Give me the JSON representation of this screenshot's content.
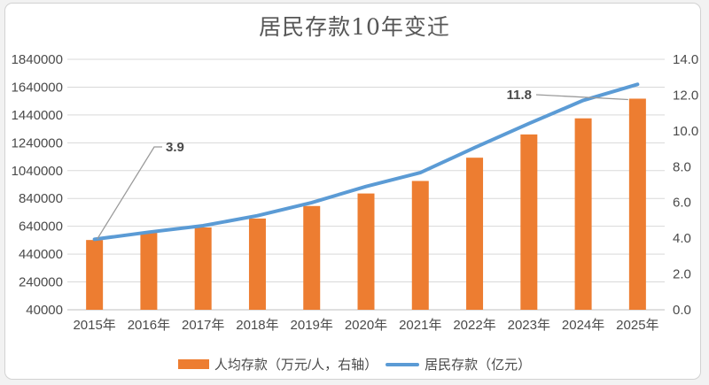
{
  "chart_data": {
    "type": "combo",
    "title": "居民存款10年变迁",
    "categories": [
      "2015年",
      "2016年",
      "2017年",
      "2018年",
      "2019年",
      "2020年",
      "2021年",
      "2022年",
      "2023年",
      "2024年",
      "2025年"
    ],
    "series": [
      {
        "name": "人均存款（万元/人，右轴）",
        "type": "bar",
        "axis": "right",
        "color": "#ED7D31",
        "values": [
          3.9,
          4.3,
          4.6,
          5.1,
          5.8,
          6.5,
          7.2,
          8.5,
          9.8,
          10.7,
          11.8
        ]
      },
      {
        "name": "居民存款（亿元）",
        "type": "line",
        "axis": "left",
        "color": "#5B9BD5",
        "values": [
          546000,
          598000,
          644000,
          716000,
          810000,
          926000,
          1025000,
          1205000,
          1378000,
          1545000,
          1660000
        ]
      }
    ],
    "left_axis": {
      "min": 40000,
      "max": 1840000,
      "step": 200000,
      "tick_labels": [
        "1840000",
        "1640000",
        "1440000",
        "1240000",
        "1040000",
        "840000",
        "640000",
        "440000",
        "240000",
        "40000"
      ]
    },
    "right_axis": {
      "min": 0,
      "max": 14,
      "step": 2,
      "tick_labels": [
        "14.0",
        "12.0",
        "10.0",
        "8.0",
        "6.0",
        "4.0",
        "2.0",
        "0.0"
      ]
    },
    "annotations": [
      {
        "text": "3.9",
        "series": "人均存款（万元/人，右轴）",
        "category": "2015年"
      },
      {
        "text": "11.8",
        "series": "人均存款（万元/人，右轴）",
        "category": "2025年"
      }
    ],
    "legend_position": "bottom",
    "grid": true,
    "colors": {
      "grid": "#D9D9D9",
      "axis_line": "#BFBFBF",
      "text": "#4a4a4a",
      "leader": "#9a9a9a"
    }
  }
}
